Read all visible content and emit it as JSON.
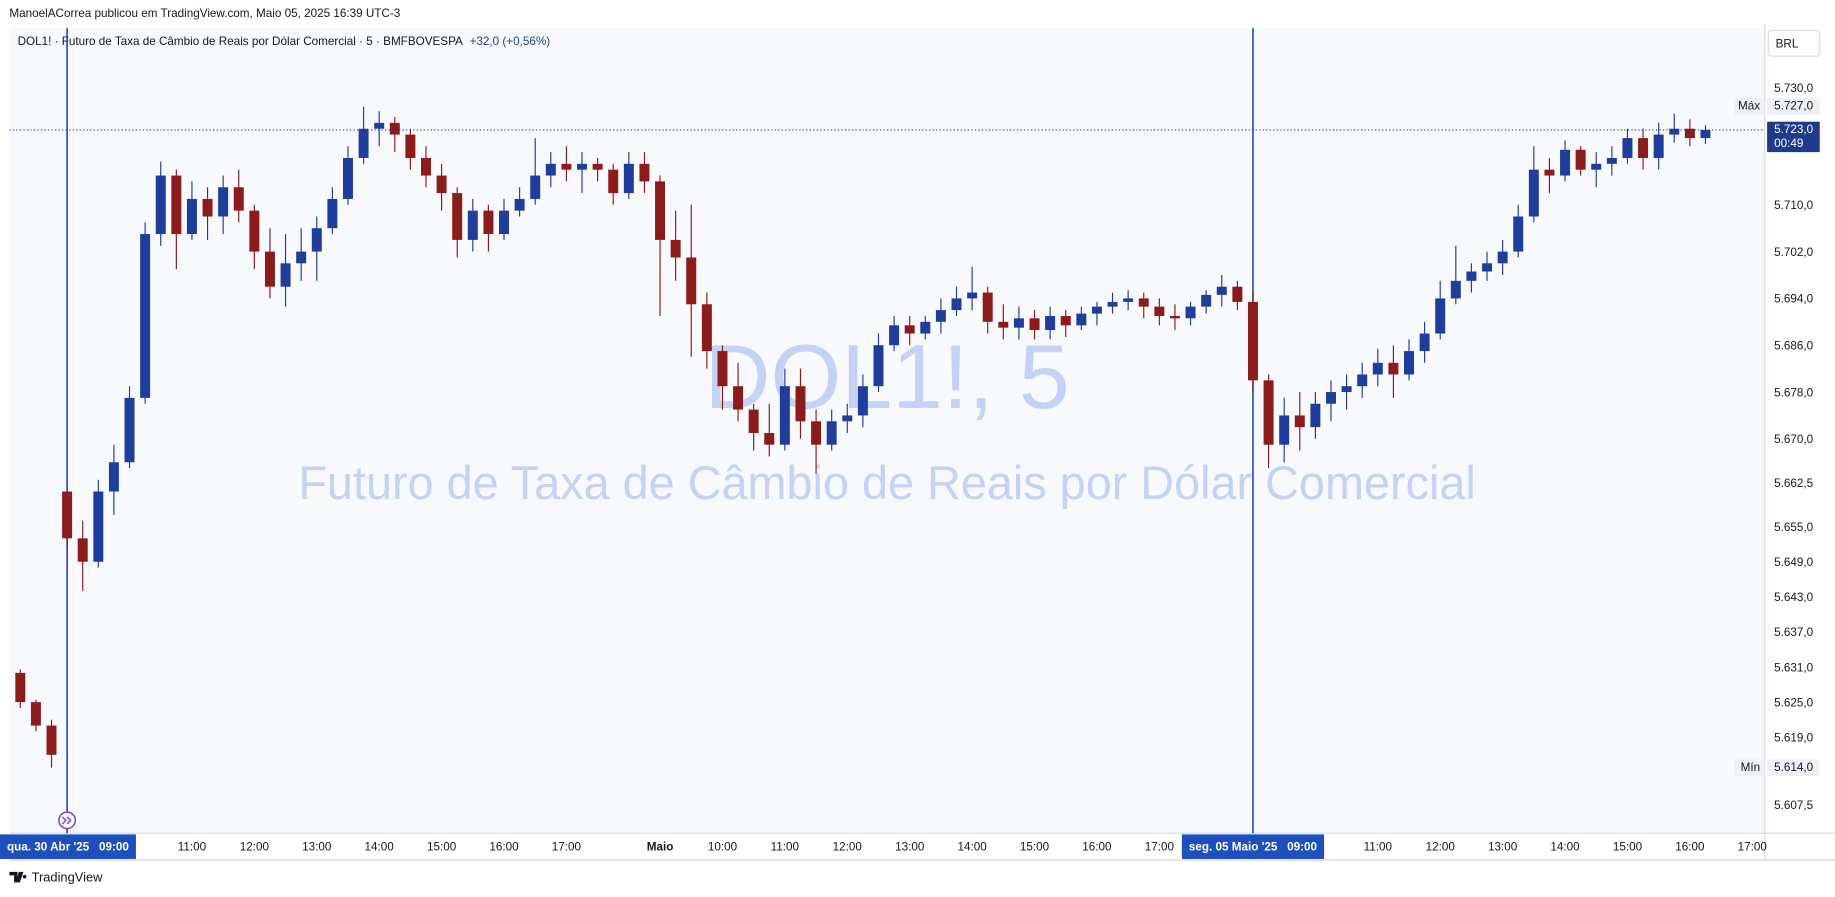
{
  "header": {
    "author_line": "ManoelACorrea publicou em TradingView.com, Maio 05, 2025 16:39 UTC-3"
  },
  "chart_data": {
    "type": "candlestick",
    "symbol": "DOL1!",
    "separator": "·",
    "description": "Futuro de Taxa de Câmbio de Reais por Dólar Comercial",
    "interval": "5",
    "exchange": "BMFBOVESPA",
    "change": "+32,0 (+0,56%)",
    "watermark": "DOL1!, 5",
    "currency": "BRL",
    "up_color": "#1f3e9c",
    "down_color": "#8c1c1c",
    "open": [
      5.6302,
      5.6252,
      5.6212,
      5.6612,
      5.6532,
      5.6492,
      5.6612,
      5.6662,
      5.6772,
      5.7052,
      5.7152,
      5.7052,
      5.7112,
      5.7082,
      5.7132,
      5.7092,
      5.7022,
      5.6962,
      5.7002,
      5.7022,
      5.7062,
      5.7112,
      5.7182,
      5.7232,
      5.7242,
      5.7222,
      5.7182,
      5.7152,
      5.7122,
      5.7042,
      5.7092,
      5.7052,
      5.7092,
      5.7112,
      5.7152,
      5.7172,
      5.7162,
      5.7172,
      5.7162,
      5.7122,
      5.7172,
      5.7142,
      5.7042,
      5.7012,
      5.6932,
      5.6852,
      5.6792,
      5.6752,
      5.6712,
      5.6692,
      5.6792,
      5.6732,
      5.6692,
      5.6732,
      5.6742,
      5.6792,
      5.6862,
      5.6896,
      5.6882,
      5.6902,
      5.6922,
      5.6942,
      5.6952,
      5.6902,
      5.6892,
      5.6908,
      5.6888,
      5.6912,
      5.6896,
      5.6916,
      5.6928,
      5.6936,
      5.6942,
      5.6928,
      5.6912,
      5.6908,
      5.6928,
      5.6948,
      5.6962,
      5.6936,
      5.6802,
      5.6692,
      5.6742,
      5.6722,
      5.6762,
      5.6782,
      5.6792,
      5.6812,
      5.6832,
      5.6812,
      5.6852,
      5.6882,
      5.6942,
      5.6972,
      5.6988,
      5.7002,
      5.7022,
      5.7082,
      5.7162,
      5.7152,
      5.7196,
      5.7162,
      5.7172,
      5.7182,
      5.7216,
      5.7182,
      5.7222,
      5.7232,
      5.7216
    ],
    "high": [
      5.6308,
      5.6256,
      5.6222,
      5.6612,
      5.6562,
      5.6632,
      5.6692,
      5.6792,
      5.7072,
      5.7176,
      5.7162,
      5.7142,
      5.7132,
      5.7152,
      5.7162,
      5.7102,
      5.7062,
      5.7052,
      5.7062,
      5.7082,
      5.7132,
      5.7202,
      5.727,
      5.7262,
      5.7252,
      5.7232,
      5.7202,
      5.7172,
      5.7132,
      5.7112,
      5.7102,
      5.7112,
      5.7132,
      5.7216,
      5.7192,
      5.7202,
      5.7192,
      5.7182,
      5.7172,
      5.7192,
      5.7192,
      5.7152,
      5.7092,
      5.7102,
      5.6952,
      5.6862,
      5.6832,
      5.6762,
      5.6762,
      5.6822,
      5.6822,
      5.6752,
      5.6752,
      5.6762,
      5.6812,
      5.6882,
      5.6912,
      5.6912,
      5.6912,
      5.6942,
      5.6962,
      5.6996,
      5.6962,
      5.6932,
      5.6928,
      5.6922,
      5.6928,
      5.6922,
      5.6928,
      5.6936,
      5.6952,
      5.6956,
      5.6952,
      5.6942,
      5.6932,
      5.6936,
      5.6956,
      5.6982,
      5.6972,
      5.6952,
      5.6812,
      5.6772,
      5.6782,
      5.6782,
      5.6802,
      5.6812,
      5.6832,
      5.6856,
      5.6862,
      5.6872,
      5.6902,
      5.6972,
      5.7032,
      5.7002,
      5.7022,
      5.7042,
      5.7102,
      5.7202,
      5.7182,
      5.7212,
      5.7202,
      5.7192,
      5.7202,
      5.7232,
      5.7232,
      5.7242,
      5.7258,
      5.7248,
      5.7238
    ],
    "low": [
      5.6242,
      5.6202,
      5.614,
      5.6512,
      5.6442,
      5.6482,
      5.6572,
      5.6652,
      5.6762,
      5.7032,
      5.6992,
      5.7042,
      5.7042,
      5.7052,
      5.7072,
      5.6992,
      5.6942,
      5.6928,
      5.6972,
      5.6972,
      5.7052,
      5.7102,
      5.7172,
      5.7202,
      5.7192,
      5.7162,
      5.7132,
      5.7092,
      5.7012,
      5.7022,
      5.7022,
      5.7042,
      5.7082,
      5.7102,
      5.7132,
      5.7142,
      5.7122,
      5.7142,
      5.7102,
      5.7112,
      5.7122,
      5.6912,
      5.6972,
      5.6842,
      5.6822,
      5.6752,
      5.6732,
      5.6682,
      5.6672,
      5.6682,
      5.6702,
      5.6642,
      5.6682,
      5.6712,
      5.6722,
      5.6782,
      5.6852,
      5.6862,
      5.6872,
      5.6882,
      5.6912,
      5.6922,
      5.6882,
      5.6872,
      5.6872,
      5.6872,
      5.6872,
      5.6876,
      5.6888,
      5.6896,
      5.6916,
      5.6922,
      5.6908,
      5.6896,
      5.6888,
      5.6896,
      5.6916,
      5.6928,
      5.6922,
      5.6782,
      5.6652,
      5.6662,
      5.6682,
      5.6702,
      5.6732,
      5.6752,
      5.6772,
      5.6792,
      5.6772,
      5.6802,
      5.6832,
      5.6872,
      5.6932,
      5.6952,
      5.6972,
      5.6982,
      5.7012,
      5.7072,
      5.7122,
      5.7142,
      5.7152,
      5.7132,
      5.7152,
      5.7172,
      5.7162,
      5.7162,
      5.7208,
      5.7202,
      5.7206
    ],
    "close": [
      5.6252,
      5.6212,
      5.6162,
      5.6532,
      5.6492,
      5.6612,
      5.6662,
      5.6772,
      5.7052,
      5.7152,
      5.7052,
      5.7112,
      5.7082,
      5.7132,
      5.7092,
      5.7022,
      5.6962,
      5.7002,
      5.7022,
      5.7062,
      5.7112,
      5.7182,
      5.7232,
      5.7242,
      5.7222,
      5.7182,
      5.7152,
      5.7122,
      5.7042,
      5.7092,
      5.7052,
      5.7092,
      5.7112,
      5.7152,
      5.7172,
      5.7162,
      5.7172,
      5.7162,
      5.7122,
      5.7172,
      5.7142,
      5.7042,
      5.7012,
      5.6932,
      5.6852,
      5.6792,
      5.6752,
      5.6712,
      5.6692,
      5.6792,
      5.6732,
      5.6692,
      5.6732,
      5.6742,
      5.6792,
      5.6862,
      5.6896,
      5.6882,
      5.6902,
      5.6922,
      5.6942,
      5.6952,
      5.6902,
      5.6892,
      5.6908,
      5.6888,
      5.6912,
      5.6896,
      5.6916,
      5.6928,
      5.6936,
      5.6942,
      5.6928,
      5.6912,
      5.6908,
      5.6928,
      5.6948,
      5.6962,
      5.6936,
      5.6802,
      5.6692,
      5.6742,
      5.6722,
      5.6762,
      5.6782,
      5.6792,
      5.6812,
      5.6832,
      5.6812,
      5.6852,
      5.6882,
      5.6942,
      5.6972,
      5.6988,
      5.7002,
      5.7022,
      5.7082,
      5.7162,
      5.7152,
      5.7196,
      5.7162,
      5.7172,
      5.7182,
      5.7216,
      5.7182,
      5.7222,
      5.7232,
      5.7216,
      5.723
    ],
    "xlim": [
      -0.7,
      111.8
    ],
    "xticks": [
      {
        "value": 3,
        "label": "qua. 30 Abr '25   09:00",
        "highlight": true
      },
      {
        "value": 11,
        "label": "11:00"
      },
      {
        "value": 15,
        "label": "12:00"
      },
      {
        "value": 19,
        "label": "13:00"
      },
      {
        "value": 23,
        "label": "14:00"
      },
      {
        "value": 27,
        "label": "15:00"
      },
      {
        "value": 31,
        "label": "16:00"
      },
      {
        "value": 35,
        "label": "17:00"
      },
      {
        "value": 41,
        "label": "Maio",
        "bold": true
      },
      {
        "value": 45,
        "label": "10:00"
      },
      {
        "value": 49,
        "label": "11:00"
      },
      {
        "value": 53,
        "label": "12:00"
      },
      {
        "value": 57,
        "label": "13:00"
      },
      {
        "value": 61,
        "label": "14:00"
      },
      {
        "value": 65,
        "label": "15:00"
      },
      {
        "value": 69,
        "label": "16:00"
      },
      {
        "value": 73,
        "label": "17:00"
      },
      {
        "value": 79,
        "label": "seg. 05 Maio '25   09:00",
        "highlight": true
      },
      {
        "value": 87,
        "label": "11:00"
      },
      {
        "value": 91,
        "label": "12:00"
      },
      {
        "value": 95,
        "label": "13:00"
      },
      {
        "value": 99,
        "label": "14:00"
      },
      {
        "value": 103,
        "label": "15:00"
      },
      {
        "value": 107,
        "label": "16:00"
      },
      {
        "value": 111,
        "label": "17:00"
      }
    ],
    "ylim": [
      5.6028,
      5.7404
    ],
    "yticks": [
      {
        "value": 5.73,
        "label": "5.730,0"
      },
      {
        "value": 5.71,
        "label": "5.710,0"
      },
      {
        "value": 5.702,
        "label": "5.702,0"
      },
      {
        "value": 5.694,
        "label": "5.694,0"
      },
      {
        "value": 5.686,
        "label": "5.686,0"
      },
      {
        "value": 5.678,
        "label": "5.678,0"
      },
      {
        "value": 5.67,
        "label": "5.670,0"
      },
      {
        "value": 5.6625,
        "label": "5.662,5"
      },
      {
        "value": 5.655,
        "label": "5.655,0"
      },
      {
        "value": 5.649,
        "label": "5.649,0"
      },
      {
        "value": 5.643,
        "label": "5.643,0"
      },
      {
        "value": 5.637,
        "label": "5.637,0"
      },
      {
        "value": 5.631,
        "label": "5.631,0"
      },
      {
        "value": 5.625,
        "label": "5.625,0"
      },
      {
        "value": 5.619,
        "label": "5.619,0"
      },
      {
        "value": 5.6075,
        "label": "5.607,5"
      }
    ],
    "last_price": {
      "value": 5.723,
      "label": "5.723,0",
      "countdown": "00:49"
    },
    "max": {
      "name": "Máx",
      "value": 5.727,
      "label": "5.727,0"
    },
    "min": {
      "name": "Mín",
      "value": 5.614,
      "label": "5.614,0"
    }
  },
  "footer": {
    "brand": "TradingView"
  }
}
